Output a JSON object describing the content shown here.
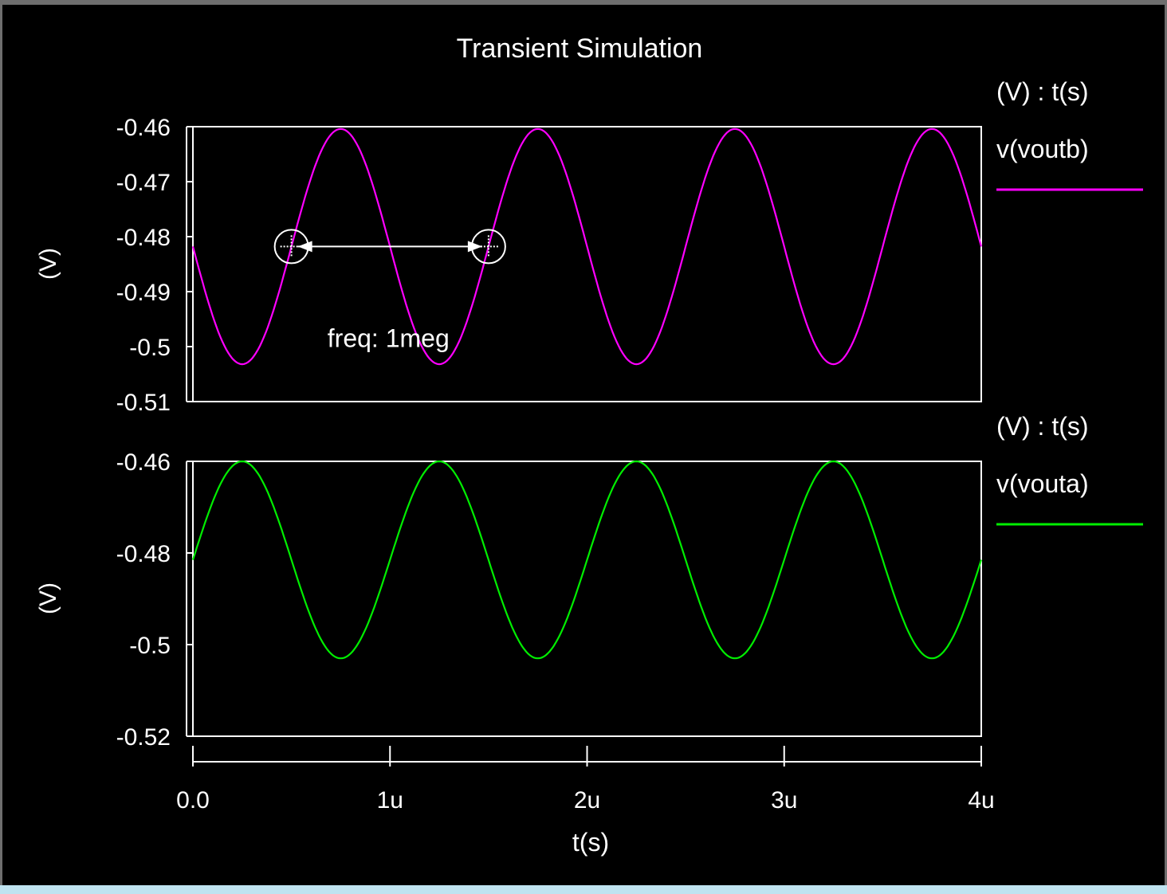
{
  "window": {
    "background_color": "#000000",
    "frame_color": "#6e6e6e"
  },
  "chart_data": {
    "type": "line",
    "title": "Transient Simulation",
    "x_axis": {
      "label": "t(s)",
      "range": [
        0,
        4e-06
      ],
      "ticks": [
        0,
        1e-06,
        2e-06,
        3e-06,
        4e-06
      ],
      "tick_labels": [
        "0.0",
        "1u",
        "2u",
        "3u",
        "4u"
      ]
    },
    "panels": [
      {
        "ylabel": "(V)",
        "header": "(V) : t(s)",
        "ylim": [
          -0.51,
          -0.46
        ],
        "yticks": [
          -0.46,
          -0.47,
          -0.48,
          -0.49,
          -0.5,
          -0.51
        ],
        "ytick_labels": [
          "-0.46",
          "-0.47",
          "-0.48",
          "-0.49",
          "-0.5",
          "-0.51"
        ],
        "series": {
          "name": "v(voutb)",
          "color": "#ff00ff",
          "offset": -0.4818,
          "amplitude": 0.0214,
          "frequency": 1000000,
          "phase_sign": -1
        },
        "annotation": {
          "text": "freq: 1meg",
          "marker_y": -0.4818,
          "from_x": 5e-07,
          "to_x": 1.5e-06,
          "text_x": 1e-06,
          "text_y": -0.4995
        }
      },
      {
        "ylabel": "(V)",
        "header": "(V) : t(s)",
        "ylim": [
          -0.52,
          -0.46
        ],
        "yticks": [
          -0.46,
          -0.48,
          -0.5,
          -0.52
        ],
        "ytick_labels": [
          "-0.46",
          "-0.48",
          "-0.5",
          "-0.52"
        ],
        "series": {
          "name": "v(vouta)",
          "color": "#00ee00",
          "offset": -0.4815,
          "amplitude": 0.0215,
          "frequency": 1000000,
          "phase_sign": 1
        }
      }
    ]
  }
}
